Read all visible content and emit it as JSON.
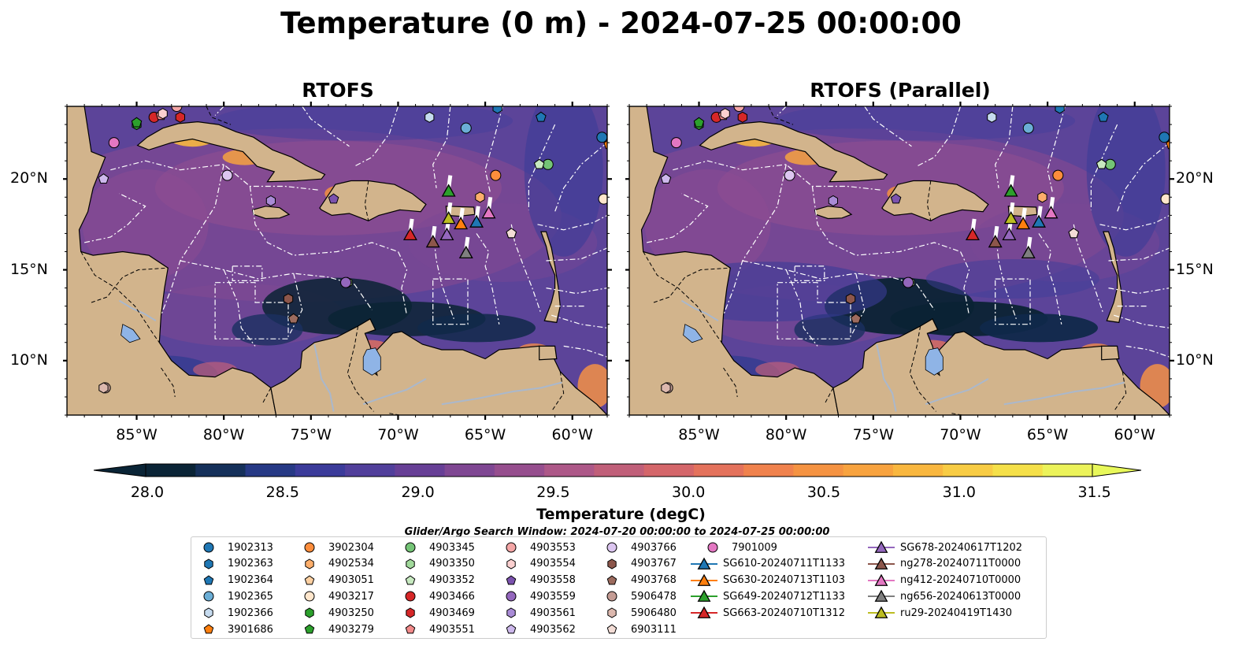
{
  "title": "Temperature (0 m) - 2024-07-25 00:00:00",
  "panels": [
    {
      "title": "RTOFS",
      "variant": "base"
    },
    {
      "title": "RTOFS (Parallel)",
      "variant": "parallel"
    }
  ],
  "map": {
    "lon_range": [
      -89,
      -58
    ],
    "lat_range": [
      7,
      24
    ],
    "lon_ticks": [
      {
        "value": -85,
        "label": "85°W"
      },
      {
        "value": -80,
        "label": "80°W"
      },
      {
        "value": -75,
        "label": "75°W"
      },
      {
        "value": -70,
        "label": "70°W"
      },
      {
        "value": -65,
        "label": "65°W"
      },
      {
        "value": -60,
        "label": "60°W"
      }
    ],
    "lat_ticks": [
      {
        "value": 20,
        "label": "20°N"
      },
      {
        "value": 15,
        "label": "15°N"
      },
      {
        "value": 10,
        "label": "10°N"
      }
    ],
    "colors": {
      "land": "#d2b48c",
      "ocean_mid": "#5b3f94",
      "warm": "#f4a340",
      "cold": "#0b2334",
      "eez": "#ffffff",
      "lake": "#8fb4e6"
    }
  },
  "colorbar": {
    "label": "Temperature (degC)",
    "min": 28.0,
    "max": 31.5,
    "extend": "both",
    "ticks": [
      "28.0",
      "28.5",
      "29.0",
      "29.5",
      "30.0",
      "30.5",
      "31.0",
      "31.5"
    ],
    "colors": [
      "#0a2436",
      "#15305a",
      "#263985",
      "#3b3b9a",
      "#513f9b",
      "#673f96",
      "#7f4793",
      "#964e8e",
      "#ad5888",
      "#c05f79",
      "#d4666a",
      "#e4725c",
      "#f0824d",
      "#f59342",
      "#f8a33f",
      "#f9b73f",
      "#f8cc44",
      "#f5e049",
      "#ecf35a"
    ]
  },
  "search_window": "Glider/Argo Search Window: 2024-07-20 00:00:00 to 2024-07-25 00:00:00",
  "legend": {
    "argo": [
      {
        "id": "1902313",
        "color": "#1f77b4",
        "shape": "circle",
        "lon": -58.3,
        "lat": 22.3
      },
      {
        "id": "1902363",
        "color": "#1f77b4",
        "shape": "hexagon",
        "lon": -64.3,
        "lat": 23.9
      },
      {
        "id": "1902364",
        "color": "#1f77b4",
        "shape": "pentagon",
        "lon": -61.8,
        "lat": 23.4
      },
      {
        "id": "1902365",
        "color": "#6baed6",
        "shape": "circle",
        "lon": -66.1,
        "lat": 22.8
      },
      {
        "id": "1902366",
        "color": "#c6dbef",
        "shape": "hexagon",
        "lon": -68.2,
        "lat": 23.4
      },
      {
        "id": "3901686",
        "color": "#ff7f0e",
        "shape": "pentagon",
        "lon": -57.9,
        "lat": 21.9
      },
      {
        "id": "3902304",
        "color": "#fd8d3c",
        "shape": "circle",
        "lon": -64.4,
        "lat": 20.2
      },
      {
        "id": "4902534",
        "color": "#fdae6b",
        "shape": "hexagon",
        "lon": -65.3,
        "lat": 19.0
      },
      {
        "id": "4903051",
        "color": "#fdd0a2",
        "shape": "pentagon",
        "lon": -63.5,
        "lat": 17.0
      },
      {
        "id": "4903217",
        "color": "#ffe6cc",
        "shape": "circle",
        "lon": -58.2,
        "lat": 18.9
      },
      {
        "id": "4903250",
        "color": "#2ca02c",
        "shape": "hexagon",
        "lon": -85.0,
        "lat": 23.0
      },
      {
        "id": "4903279",
        "color": "#2ca02c",
        "shape": "pentagon",
        "lon": -85.0,
        "lat": 23.1
      },
      {
        "id": "4903345",
        "color": "#74c476",
        "shape": "circle",
        "lon": -61.4,
        "lat": 20.8
      },
      {
        "id": "4903350",
        "color": "#a1d99b",
        "shape": "hexagon",
        "lon": -72.9,
        "lat": 14.3
      },
      {
        "id": "4903352",
        "color": "#c7e9c0",
        "shape": "pentagon",
        "lon": -61.9,
        "lat": 20.8
      },
      {
        "id": "4903466",
        "color": "#d62728",
        "shape": "circle",
        "lon": -84.0,
        "lat": 23.4
      },
      {
        "id": "4903469",
        "color": "#d62728",
        "shape": "hexagon",
        "lon": -82.5,
        "lat": 23.4
      },
      {
        "id": "4903551",
        "color": "#f28a8a",
        "shape": "pentagon",
        "lon": -83.6,
        "lat": 23.5
      },
      {
        "id": "4903553",
        "color": "#f4a6a6",
        "shape": "circle",
        "lon": -82.7,
        "lat": 24.0
      },
      {
        "id": "4903554",
        "color": "#fbd0d0",
        "shape": "hexagon",
        "lon": -83.5,
        "lat": 23.6
      },
      {
        "id": "4903558",
        "color": "#7b52ae",
        "shape": "pentagon",
        "lon": -73.7,
        "lat": 18.9
      },
      {
        "id": "4903559",
        "color": "#9467bd",
        "shape": "circle",
        "lon": -73.0,
        "lat": 14.3
      },
      {
        "id": "4903561",
        "color": "#a98bd6",
        "shape": "hexagon",
        "lon": -77.3,
        "lat": 18.8
      },
      {
        "id": "4903562",
        "color": "#cdb8ec",
        "shape": "pentagon",
        "lon": -86.9,
        "lat": 20.0
      },
      {
        "id": "4903766",
        "color": "#dcc6f0",
        "shape": "circle",
        "lon": -79.8,
        "lat": 20.2
      },
      {
        "id": "4903767",
        "color": "#8c564b",
        "shape": "hexagon",
        "lon": -76.3,
        "lat": 13.4
      },
      {
        "id": "4903768",
        "color": "#9c6b5e",
        "shape": "pentagon",
        "lon": -76.0,
        "lat": 12.3
      },
      {
        "id": "5906478",
        "color": "#c49c94",
        "shape": "circle",
        "lon": -86.8,
        "lat": 8.5
      },
      {
        "id": "5906480",
        "color": "#dcb8ae",
        "shape": "hexagon",
        "lon": -86.9,
        "lat": 8.5
      },
      {
        "id": "6903111",
        "color": "#f3ddd6",
        "shape": "pentagon",
        "lon": -63.5,
        "lat": 17.0
      },
      {
        "id": "7901009",
        "color": "#e377c2",
        "shape": "circle",
        "lon": -86.3,
        "lat": 22.0
      }
    ],
    "gliders": [
      {
        "id": "SG610-20240711T1133",
        "color": "#1f77b4",
        "lon": -65.5,
        "lat": 17.6
      },
      {
        "id": "SG630-20240713T1103",
        "color": "#ff7f0e",
        "lon": -66.4,
        "lat": 17.5
      },
      {
        "id": "SG649-20240712T1133",
        "color": "#2ca02c",
        "lon": -67.1,
        "lat": 19.3
      },
      {
        "id": "SG663-20240710T1312",
        "color": "#d62728",
        "lon": -69.3,
        "lat": 16.9
      },
      {
        "id": "SG678-20240617T1202",
        "color": "#9467bd",
        "lon": -67.2,
        "lat": 16.9
      },
      {
        "id": "ng278-20240711T0000",
        "color": "#8c564b",
        "lon": -68.0,
        "lat": 16.5
      },
      {
        "id": "ng412-20240710T0000",
        "color": "#e377c2",
        "lon": -64.8,
        "lat": 18.1
      },
      {
        "id": "ng656-20240613T0000",
        "color": "#7f7f7f",
        "lon": -66.1,
        "lat": 15.9
      },
      {
        "id": "ru29-20240419T1430",
        "color": "#bcbd22",
        "lon": -67.1,
        "lat": 17.8
      }
    ]
  }
}
